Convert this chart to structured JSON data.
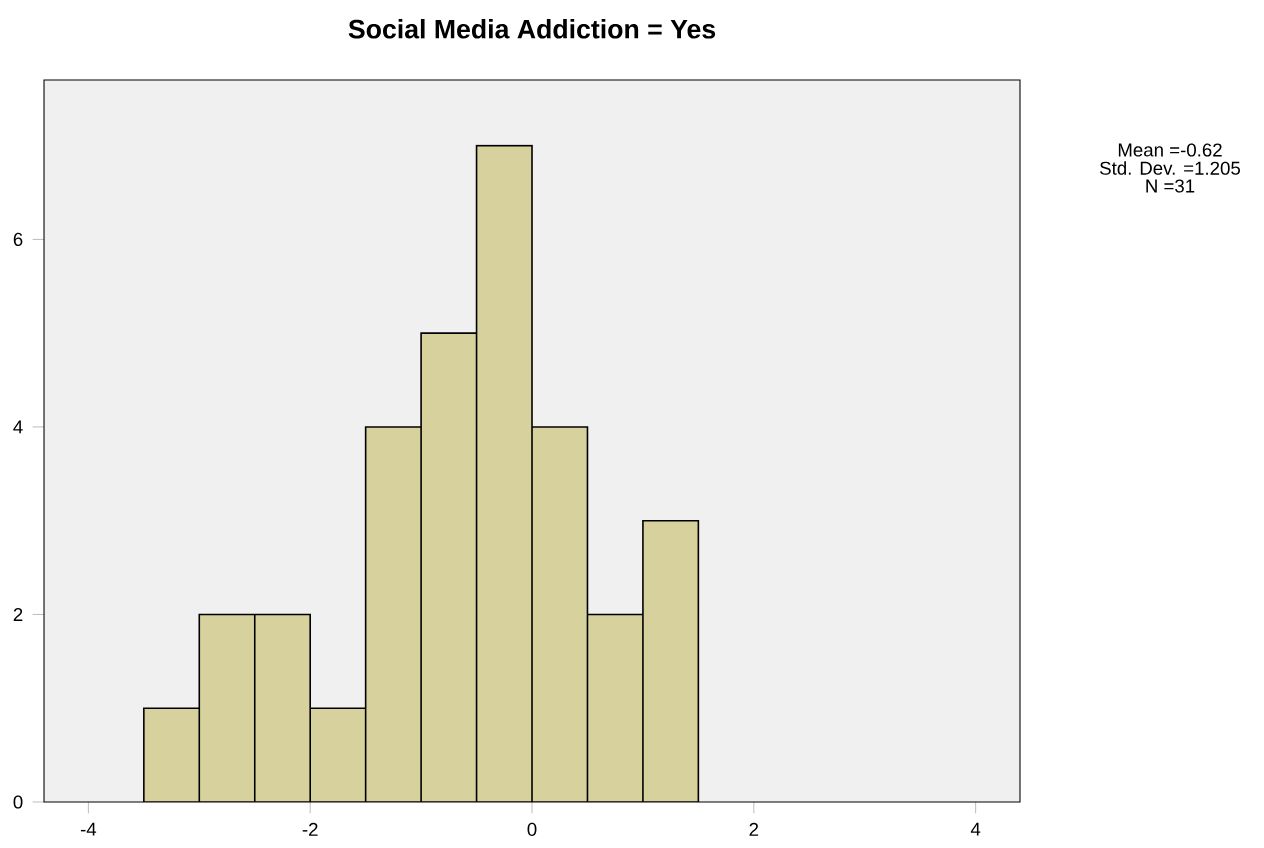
{
  "chart_data": {
    "type": "histogram",
    "title": "Social Media Addiction = Yes",
    "bins": [
      -3.5,
      -3,
      -2.5,
      -2,
      -1.5,
      -1,
      -0.5,
      0,
      0.5,
      1,
      1.5
    ],
    "values": [
      1,
      2,
      2,
      1,
      4,
      5,
      7,
      4,
      2,
      3
    ],
    "color": "#d6d19d",
    "xlim": [
      -4.4,
      4.4
    ],
    "xticks": [
      -4,
      -2,
      0,
      2,
      4
    ],
    "ylim": [
      0,
      7.7
    ],
    "yticks": [
      0,
      2,
      4,
      6
    ],
    "annotations": [
      "Mean =-0.62",
      "Std. Dev. =1.205",
      "N =31"
    ]
  }
}
